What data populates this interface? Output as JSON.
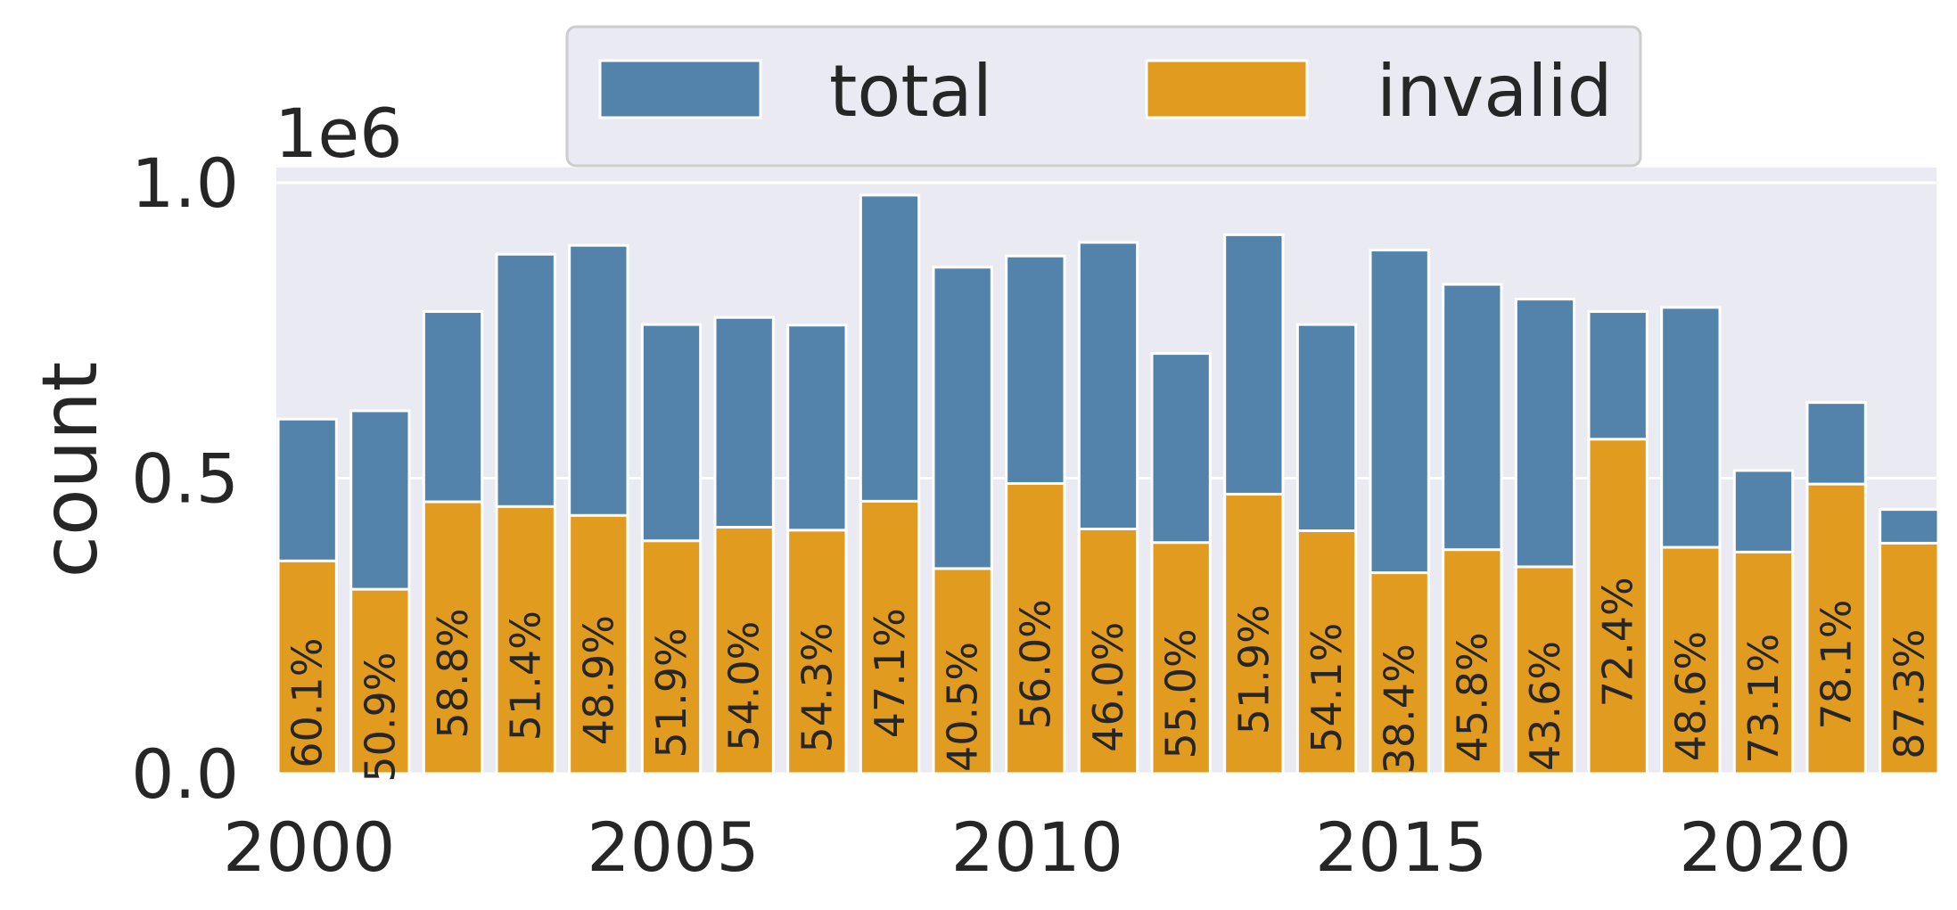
{
  "chart_data": {
    "type": "bar",
    "stacked": false,
    "x": [
      2000,
      2001,
      2002,
      2003,
      2004,
      2005,
      2006,
      2007,
      2008,
      2009,
      2010,
      2011,
      2012,
      2013,
      2014,
      2015,
      2016,
      2017,
      2018,
      2019,
      2020,
      2021,
      2022
    ],
    "xticks": [
      "2000",
      "2005",
      "2010",
      "2015",
      "2020"
    ],
    "yticks": [
      "0.0",
      "0.5",
      "1.0"
    ],
    "y_offset_label": "1e6",
    "ylabel": "count",
    "xlabel": "",
    "ylim": [
      0,
      1000000
    ],
    "grid": true,
    "legend": {
      "placement": "top-center",
      "columns": 2
    },
    "series": [
      {
        "name": "total",
        "color": "#5383aa",
        "values": [
          600000,
          614000,
          782000,
          879000,
          894000,
          760000,
          772000,
          759000,
          979000,
          857000,
          876000,
          899000,
          711000,
          912000,
          760000,
          886000,
          828000,
          803000,
          782000,
          789000,
          513000,
          628000,
          447000
        ]
      },
      {
        "name": "invalid",
        "color": "#e19c20",
        "values": [
          360000,
          312000,
          460000,
          452000,
          437000,
          394000,
          417000,
          412000,
          461000,
          347000,
          491000,
          414000,
          391000,
          473000,
          411000,
          340000,
          379000,
          350000,
          566000,
          383000,
          375000,
          490000,
          390000
        ]
      }
    ],
    "labels": [
      "60.1%",
      "50.9%",
      "58.8%",
      "51.4%",
      "48.9%",
      "51.9%",
      "54.0%",
      "54.3%",
      "47.1%",
      "40.5%",
      "56.0%",
      "46.0%",
      "55.0%",
      "51.9%",
      "54.1%",
      "38.4%",
      "45.8%",
      "43.6%",
      "72.4%",
      "48.6%",
      "73.1%",
      "78.1%",
      "87.3%"
    ]
  }
}
